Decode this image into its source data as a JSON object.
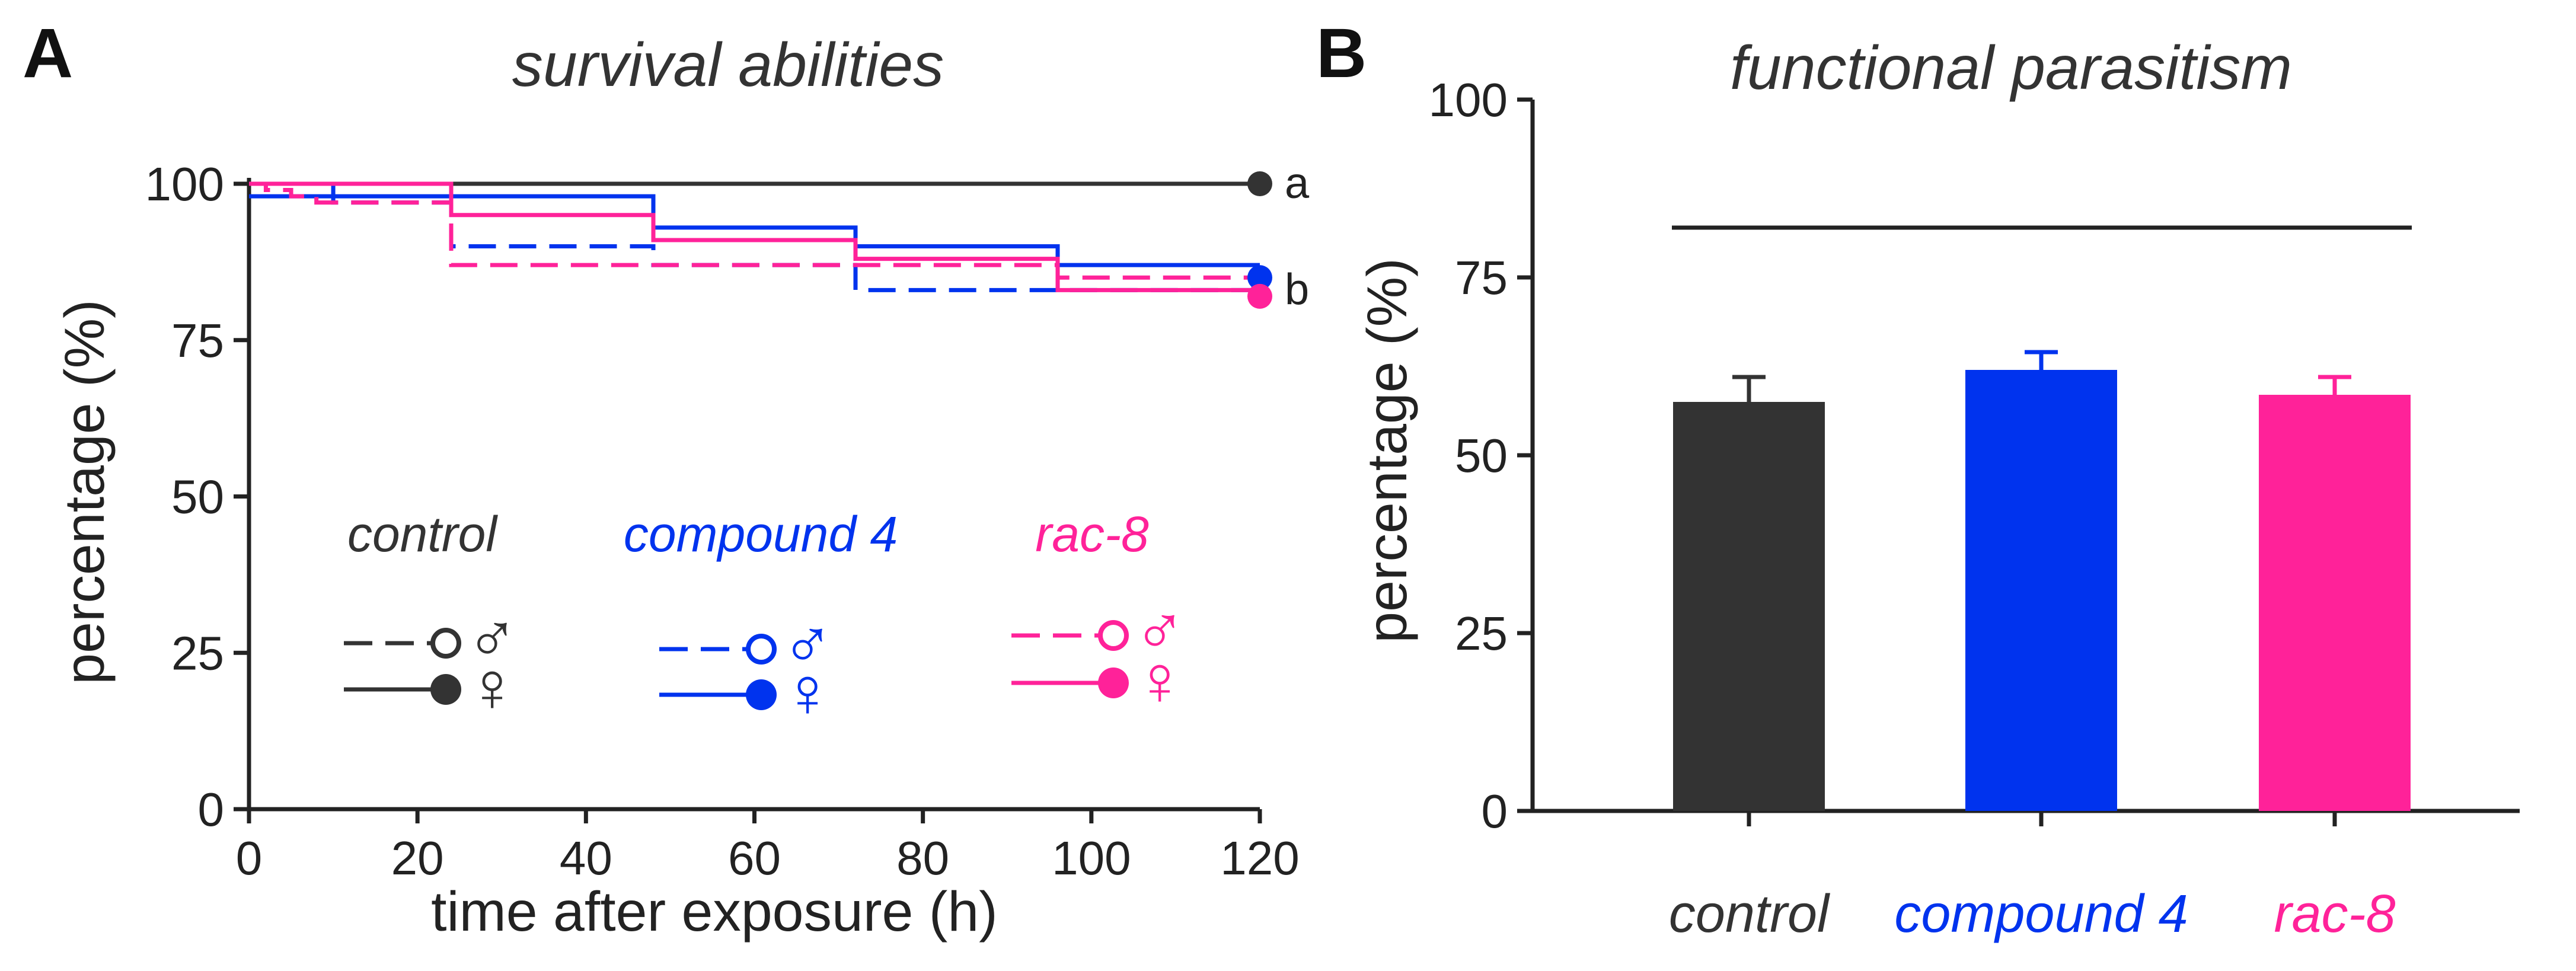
{
  "panels": {
    "a": {
      "letter": "A",
      "title": "survival abilities"
    },
    "b": {
      "letter": "B",
      "title": "functional parasitism"
    }
  },
  "colors": {
    "control": "#333333",
    "compound": "#0033ee",
    "rac": "#ff2299",
    "axis": "#222222"
  },
  "chart_data": [
    {
      "type": "line",
      "subtype": "kaplan-meier step survival curves",
      "title": "survival abilities",
      "xlabel": "time after exposure (h)",
      "ylabel": "percentage (%)",
      "xlim": [
        0,
        120
      ],
      "ylim": [
        0,
        100
      ],
      "xticks": [
        0,
        20,
        40,
        60,
        80,
        100,
        120
      ],
      "yticks": [
        0,
        25,
        50,
        75,
        100
      ],
      "legend": {
        "placement": "lower-center",
        "groups": [
          {
            "label": "control",
            "color_key": "control"
          },
          {
            "label": "compound 4",
            "color_key": "compound"
          },
          {
            "label": "rac-8",
            "color_key": "rac"
          }
        ],
        "male_symbol": "♂",
        "female_symbol": "♀"
      },
      "series": [
        {
          "name": "control ♂",
          "group": "control",
          "sex": "male",
          "style": "dashed",
          "x": [
            0,
            120
          ],
          "y": [
            100,
            100
          ]
        },
        {
          "name": "control ♀",
          "group": "control",
          "sex": "female",
          "style": "solid",
          "x": [
            0,
            120
          ],
          "y": [
            100,
            100
          ]
        },
        {
          "name": "compound 4 ♂",
          "group": "compound",
          "sex": "male",
          "style": "dashed",
          "x": [
            0,
            10,
            24,
            48,
            72,
            96,
            120
          ],
          "y": [
            100,
            97,
            90,
            87,
            83,
            83,
            83
          ]
        },
        {
          "name": "compound 4 ♀",
          "group": "compound",
          "sex": "female",
          "style": "solid",
          "x": [
            0,
            48,
            72,
            96,
            120
          ],
          "y": [
            98,
            93,
            90,
            87,
            87
          ]
        },
        {
          "name": "rac-8 ♂",
          "group": "rac",
          "sex": "male",
          "style": "dashed",
          "x": [
            0,
            2,
            5,
            8,
            24,
            72,
            96,
            120
          ],
          "y": [
            100,
            99,
            98,
            97,
            87,
            87,
            85,
            85
          ]
        },
        {
          "name": "rac-8 ♀",
          "group": "rac",
          "sex": "female",
          "style": "solid",
          "x": [
            0,
            24,
            48,
            72,
            96,
            120
          ],
          "y": [
            100,
            95,
            91,
            88,
            83,
            83
          ]
        }
      ],
      "annotations": [
        {
          "text": "a",
          "x": 120,
          "y": 100
        },
        {
          "text": "b",
          "x": 120,
          "y": 83
        }
      ]
    },
    {
      "type": "bar",
      "title": "functional parasitism",
      "xlabel": "",
      "ylabel": "percentage (%)",
      "ylim": [
        0,
        100
      ],
      "yticks": [
        0,
        25,
        50,
        75,
        100
      ],
      "categories": [
        "control",
        "compound 4",
        "rac-8"
      ],
      "values": [
        57.5,
        62,
        58.5
      ],
      "errors": [
        3.5,
        2.5,
        2.5
      ],
      "color_keys": [
        "control",
        "compound",
        "rac"
      ],
      "significance_line_y": 82
    }
  ]
}
